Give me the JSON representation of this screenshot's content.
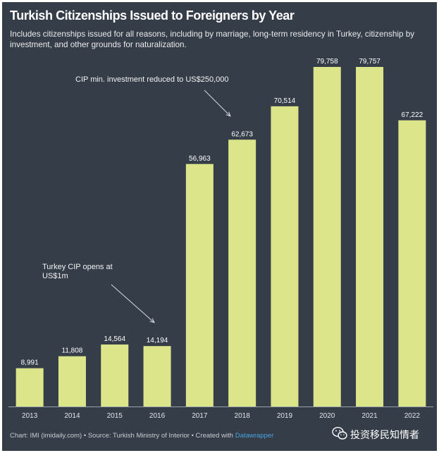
{
  "colors": {
    "background": "#353d48",
    "bar": "#dde58b",
    "text": "#ffffff",
    "link": "#4aa3df"
  },
  "chart_data": {
    "type": "bar",
    "title": "Turkish Citizenships Issued to Foreigners by Year",
    "subtitle": "Includes citizenships issued for all reasons, including by marriage, long-term residency in Turkey, citizenship by investment, and other grounds for naturalization.",
    "categories": [
      "2013",
      "2014",
      "2015",
      "2016",
      "2017",
      "2018",
      "2019",
      "2020",
      "2021",
      "2022"
    ],
    "values": [
      8991,
      11808,
      14564,
      14194,
      56963,
      62673,
      70514,
      79758,
      79757,
      67222
    ],
    "data_labels": [
      "8,991",
      "11,808",
      "14,564",
      "14,194",
      "56,963",
      "62,673",
      "70,514",
      "79,758",
      "79,757",
      "67,222"
    ],
    "annotations": [
      {
        "text": "CIP min. investment reduced to US$250,000"
      },
      {
        "text": "Turkey CIP opens at US$1m"
      }
    ],
    "grid": false
  },
  "footer": {
    "credit": "Chart: IMI (imidaily.com) • Source: Turkish Ministry of Interior • Created with",
    "link": "Datawrapper"
  },
  "watermark": {
    "icon": "wechat-icon",
    "text": "投资移民知情者"
  }
}
